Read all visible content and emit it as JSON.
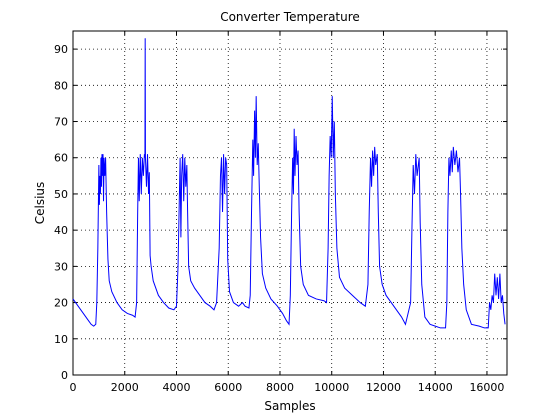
{
  "chart_data": {
    "type": "line",
    "title": "Converter Temperature",
    "x_label": "Samples",
    "y_label": "Celsius",
    "x": [
      0,
      200,
      400,
      600,
      700,
      800,
      880,
      920,
      960,
      1000,
      1020,
      1040,
      1060,
      1080,
      1100,
      1120,
      1140,
      1160,
      1180,
      1200,
      1230,
      1260,
      1300,
      1350,
      1400,
      1500,
      1700,
      1900,
      2100,
      2300,
      2400,
      2460,
      2500,
      2530,
      2560,
      2600,
      2640,
      2680,
      2720,
      2760,
      2780,
      2790,
      2800,
      2840,
      2880,
      2920,
      2950,
      2980,
      3020,
      3100,
      3300,
      3500,
      3700,
      3900,
      4000,
      4060,
      4100,
      4140,
      4170,
      4200,
      4240,
      4280,
      4320,
      4360,
      4400,
      4430,
      4470,
      4550,
      4700,
      4900,
      5100,
      5300,
      5450,
      5550,
      5650,
      5700,
      5740,
      5780,
      5820,
      5860,
      5900,
      5940,
      5980,
      6050,
      6200,
      6400,
      6550,
      6650,
      6800,
      6850,
      6900,
      6950,
      6980,
      7020,
      7050,
      7080,
      7120,
      7160,
      7200,
      7250,
      7320,
      7450,
      7650,
      7900,
      8100,
      8250,
      8350,
      8400,
      8450,
      8490,
      8520,
      8550,
      8580,
      8620,
      8660,
      8700,
      8740,
      8800,
      8900,
      9100,
      9400,
      9700,
      9800,
      9860,
      9900,
      9940,
      9980,
      10020,
      10060,
      10100,
      10140,
      10200,
      10300,
      10500,
      10800,
      11100,
      11300,
      11400,
      11450,
      11500,
      11540,
      11580,
      11620,
      11660,
      11700,
      11760,
      11800,
      11850,
      11950,
      12100,
      12300,
      12500,
      12700,
      12850,
      13050,
      13100,
      13150,
      13200,
      13250,
      13300,
      13380,
      13420,
      13480,
      13600,
      13800,
      14000,
      14200,
      14400,
      14450,
      14490,
      14530,
      14570,
      14620,
      14660,
      14700,
      14760,
      14820,
      14880,
      14940,
      14980,
      15030,
      15100,
      15200,
      15400,
      15700,
      15900,
      16050,
      16100,
      16150,
      16200,
      16250,
      16300,
      16350,
      16400,
      16450,
      16500,
      16550,
      16600,
      16650,
      16700
    ],
    "values": [
      21,
      19,
      17,
      15,
      14,
      13.5,
      14,
      20,
      35,
      58,
      47,
      55,
      50,
      60,
      52,
      61,
      55,
      61,
      48,
      60,
      55,
      60,
      45,
      32,
      26,
      23,
      20,
      18,
      17,
      16.5,
      16,
      20,
      45,
      60,
      48,
      61,
      50,
      60,
      55,
      61,
      60,
      93,
      60,
      52,
      61,
      50,
      56,
      33,
      30,
      26,
      22,
      20,
      18.5,
      18,
      19,
      30,
      45,
      60,
      38,
      55,
      61,
      48,
      60,
      52,
      58,
      45,
      30,
      26,
      24,
      22,
      20,
      19,
      18,
      20,
      35,
      55,
      60,
      45,
      61,
      50,
      60,
      58,
      32,
      23,
      20,
      19,
      20,
      19,
      18.5,
      22,
      45,
      65,
      55,
      73,
      60,
      77,
      58,
      64,
      52,
      38,
      28,
      24,
      21,
      19,
      17,
      15,
      14,
      22,
      45,
      60,
      50,
      68,
      55,
      66,
      58,
      62,
      45,
      30,
      25,
      22,
      21,
      20.5,
      20,
      35,
      55,
      66,
      60,
      77,
      60,
      70,
      50,
      35,
      27,
      24,
      22,
      20,
      19,
      25,
      45,
      60,
      52,
      62,
      55,
      63,
      58,
      61,
      45,
      30,
      25,
      22,
      20,
      18,
      16,
      14,
      20,
      40,
      58,
      50,
      61,
      55,
      60,
      42,
      25,
      16,
      14,
      13.5,
      13,
      13,
      20,
      45,
      60,
      55,
      62,
      56,
      63,
      58,
      62,
      56,
      60,
      50,
      35,
      25,
      18,
      14,
      13.5,
      13,
      13,
      20,
      18,
      22,
      20,
      28,
      22,
      27,
      21,
      28,
      20,
      22,
      17,
      14
    ],
    "color": "#0000ff",
    "xlim": [
      0,
      16775
    ],
    "xticks": [
      0,
      2000,
      4000,
      6000,
      8000,
      10000,
      12000,
      14000,
      16000
    ],
    "ylim": [
      0,
      95
    ],
    "yticks": [
      0,
      10,
      20,
      30,
      40,
      50,
      60,
      70,
      80,
      90
    ],
    "grid": true
  }
}
